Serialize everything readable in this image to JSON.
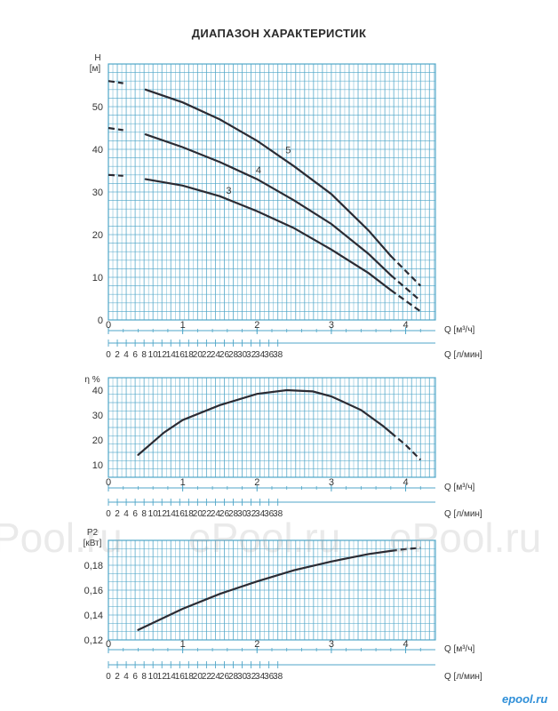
{
  "title": "ДИАПАЗОН ХАРАКТЕРИСТИК",
  "watermark": {
    "text_left": "Pool.ru",
    "text_mid": "ePool.ru",
    "text_right": "ePool.ru"
  },
  "logo": "epool.ru",
  "colors": {
    "grid": "#4fa6c8",
    "curve": "#2b2b33",
    "text": "#333333"
  },
  "chart_data": [
    {
      "type": "line",
      "ylabel": "H [м]",
      "xlabel": "Q [м³/ч]",
      "xlabel2": "Q [л/мин]",
      "xlim": [
        0,
        4.4
      ],
      "ylim": [
        0,
        60
      ],
      "x_ticks": [
        0,
        1,
        2,
        3,
        4
      ],
      "x_ticks2": [
        0,
        2,
        4,
        6,
        8,
        10,
        12,
        14,
        16,
        18,
        20,
        22,
        24,
        26,
        28,
        30,
        32,
        34,
        36,
        38
      ],
      "y_ticks": [
        0,
        10,
        20,
        30,
        40,
        50
      ],
      "series": [
        {
          "name": "5",
          "x": [
            0,
            0.2,
            0.5,
            1.0,
            1.5,
            2.0,
            2.5,
            3.0,
            3.5,
            3.8,
            4.0,
            4.2
          ],
          "y": [
            56,
            55.5,
            54,
            51,
            47,
            42,
            36,
            29.5,
            21,
            15,
            11.5,
            8
          ],
          "dashed_x_below": 0.25,
          "dashed_x_above": 3.8
        },
        {
          "name": "4",
          "x": [
            0,
            0.2,
            0.5,
            1.0,
            1.5,
            2.0,
            2.5,
            3.0,
            3.5,
            3.8,
            4.0,
            4.2
          ],
          "y": [
            45,
            44.5,
            43.5,
            40.5,
            37,
            33,
            28,
            22.5,
            15.5,
            10.5,
            7.5,
            4.5
          ],
          "dashed_x_below": 0.25,
          "dashed_x_above": 3.8
        },
        {
          "name": "3",
          "x": [
            0,
            0.2,
            0.5,
            1.0,
            1.5,
            2.0,
            2.5,
            3.0,
            3.5,
            3.8,
            4.0,
            4.2
          ],
          "y": [
            34,
            33.8,
            33,
            31.5,
            29,
            25.5,
            21.5,
            16.5,
            11,
            7,
            4.5,
            2
          ],
          "dashed_x_below": 0.25,
          "dashed_x_above": 3.8
        }
      ]
    },
    {
      "type": "line",
      "ylabel": "η %",
      "xlabel": "Q [м³/ч]",
      "xlabel2": "Q [л/мин]",
      "xlim": [
        0,
        4.4
      ],
      "ylim": [
        5,
        45
      ],
      "x_ticks": [
        0,
        1,
        2,
        3,
        4
      ],
      "x_ticks2": [
        0,
        2,
        4,
        6,
        8,
        10,
        12,
        14,
        16,
        18,
        20,
        22,
        24,
        26,
        28,
        30,
        32,
        34,
        36,
        38
      ],
      "y_ticks": [
        10,
        20,
        30,
        40
      ],
      "series": [
        {
          "x": [
            0.4,
            0.75,
            1.0,
            1.5,
            2.0,
            2.4,
            2.75,
            3.0,
            3.4,
            3.7,
            3.8,
            4.0,
            4.2
          ],
          "y": [
            14,
            23,
            28,
            34,
            38.5,
            40,
            39.5,
            37.5,
            32,
            25.5,
            23,
            18,
            12
          ],
          "dashed_x_above": 3.8
        }
      ]
    },
    {
      "type": "line",
      "ylabel": "P2",
      "ylabel_unit": "[кВт]",
      "xlabel": "Q [м³/ч]",
      "xlabel2": "Q [л/мин]",
      "xlim": [
        0,
        4.4
      ],
      "ylim": [
        0.12,
        0.2
      ],
      "x_ticks": [
        0,
        1,
        2,
        3,
        4
      ],
      "x_ticks2": [
        0,
        2,
        4,
        6,
        8,
        10,
        12,
        14,
        16,
        18,
        20,
        22,
        24,
        26,
        28,
        30,
        32,
        34,
        36,
        38
      ],
      "y_ticks": [
        "0,12",
        "0,14",
        "0,16",
        "0,18"
      ],
      "y_tick_values": [
        0.12,
        0.14,
        0.16,
        0.18
      ],
      "series": [
        {
          "x": [
            0.4,
            1.0,
            1.5,
            2.0,
            2.5,
            3.0,
            3.5,
            3.8,
            4.0,
            4.2
          ],
          "y": [
            0.128,
            0.145,
            0.157,
            0.167,
            0.176,
            0.183,
            0.189,
            0.1915,
            0.193,
            0.194
          ],
          "dashed_x_above": 3.8
        }
      ]
    }
  ]
}
